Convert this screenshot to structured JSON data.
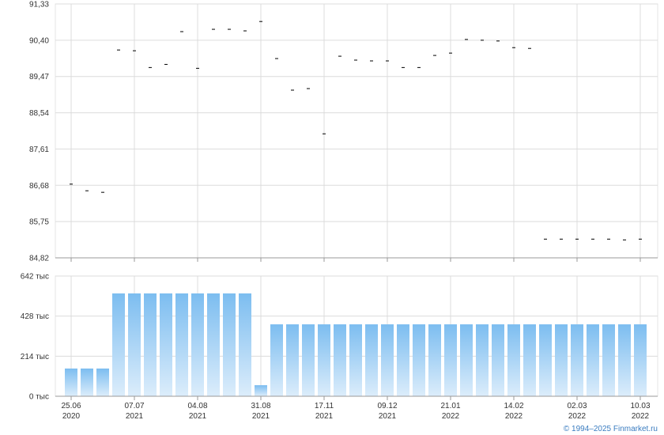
{
  "chart_data": [
    {
      "type": "scatter",
      "color": "#000000",
      "grid": true,
      "values": [
        86.71,
        86.54,
        86.5,
        90.15,
        90.13,
        89.7,
        89.78,
        90.62,
        89.68,
        90.68,
        90.68,
        90.64,
        90.88,
        89.93,
        89.12,
        89.16,
        88.0,
        89.99,
        89.89,
        89.87,
        89.87,
        89.7,
        89.7,
        90.01,
        90.07,
        90.42,
        90.4,
        90.38,
        90.21,
        90.19,
        85.3,
        85.3,
        85.3,
        85.3,
        85.3,
        85.28,
        85.3
      ],
      "ylim": [
        84.82,
        91.33
      ],
      "yticks": [
        {
          "value": 84.82,
          "label": "84,82"
        },
        {
          "value": 85.75,
          "label": "85,75"
        },
        {
          "value": 86.68,
          "label": "86,68"
        },
        {
          "value": 87.61,
          "label": "87,61"
        },
        {
          "value": 88.54,
          "label": "88,54"
        },
        {
          "value": 89.47,
          "label": "89,47"
        },
        {
          "value": 90.4,
          "label": "90,40"
        },
        {
          "value": 91.33,
          "label": "91,33"
        }
      ]
    },
    {
      "type": "bar",
      "color": "#7cbdf0",
      "grid": true,
      "categories": [
        "25.06 2020",
        null,
        null,
        null,
        "07.07 2021",
        null,
        null,
        null,
        "04.08 2021",
        null,
        null,
        null,
        "31.08 2021",
        null,
        null,
        null,
        "17.11 2021",
        null,
        null,
        null,
        "09.12 2021",
        null,
        null,
        null,
        "21.01 2022",
        null,
        null,
        null,
        "14.02 2022",
        null,
        null,
        null,
        "02.03 2022",
        null,
        null,
        null,
        "10.03 2022"
      ],
      "values": [
        148,
        148,
        148,
        549,
        549,
        549,
        549,
        549,
        549,
        549,
        549,
        549,
        59,
        384,
        384,
        384,
        384,
        384,
        384,
        384,
        384,
        384,
        384,
        384,
        384,
        384,
        384,
        384,
        384,
        384,
        384,
        384,
        384,
        384,
        384,
        384,
        384
      ],
      "ylim": [
        0,
        642
      ],
      "yticks": [
        {
          "value": 0,
          "label": "0 тыс"
        },
        {
          "value": 214,
          "label": "214 тыс"
        },
        {
          "value": 428,
          "label": "428 тыс"
        },
        {
          "value": 642,
          "label": "642 тыс"
        }
      ]
    }
  ],
  "footer": "© 1994–2025 Finmarket.ru"
}
